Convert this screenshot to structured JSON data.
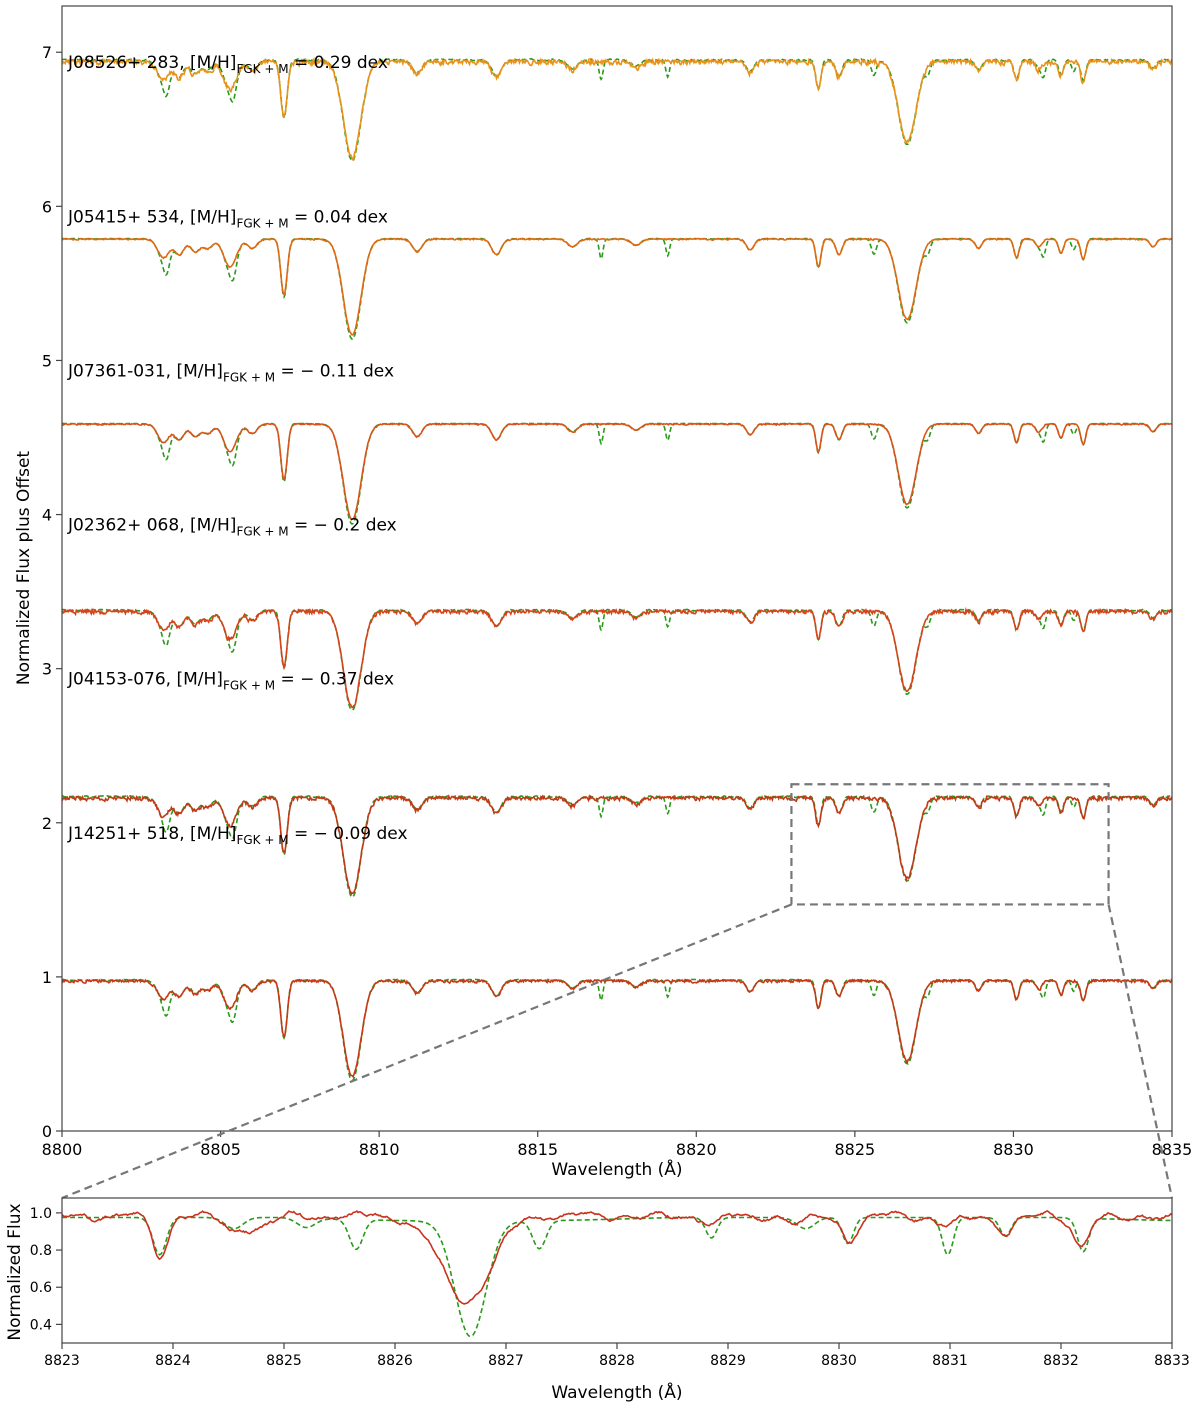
{
  "chart_data": [
    {
      "type": "line",
      "panel": "main",
      "xlabel": "Wavelength (Å)",
      "ylabel": "Normalized Flux plus Offset",
      "xlim": [
        8800,
        8835
      ],
      "ylim": [
        0,
        7.3
      ],
      "xticks": [
        8800,
        8805,
        8810,
        8815,
        8820,
        8825,
        8830,
        8835
      ],
      "yticks": [
        0,
        1,
        2,
        3,
        4,
        5,
        6,
        7
      ],
      "continuum_lines": [
        {
          "x": 8803.2,
          "d": 0.12,
          "w": 0.18
        },
        {
          "x": 8803.7,
          "d": 0.1,
          "w": 0.15
        },
        {
          "x": 8804.2,
          "d": 0.08,
          "w": 0.15
        },
        {
          "x": 8804.6,
          "d": 0.06,
          "w": 0.15
        },
        {
          "x": 8805.3,
          "d": 0.18,
          "w": 0.2
        },
        {
          "x": 8806.0,
          "d": 0.06,
          "w": 0.15
        },
        {
          "x": 8807.0,
          "d": 0.36,
          "w": 0.1
        },
        {
          "x": 8809.15,
          "d": 0.62,
          "w": 0.28
        },
        {
          "x": 8811.2,
          "d": 0.08,
          "w": 0.15
        },
        {
          "x": 8813.7,
          "d": 0.1,
          "w": 0.15
        },
        {
          "x": 8816.1,
          "d": 0.05,
          "w": 0.15
        },
        {
          "x": 8818.1,
          "d": 0.04,
          "w": 0.15
        },
        {
          "x": 8821.7,
          "d": 0.07,
          "w": 0.12
        },
        {
          "x": 8823.85,
          "d": 0.18,
          "w": 0.08
        },
        {
          "x": 8824.5,
          "d": 0.1,
          "w": 0.1
        },
        {
          "x": 8826.65,
          "d": 0.52,
          "w": 0.28
        },
        {
          "x": 8828.9,
          "d": 0.06,
          "w": 0.1
        },
        {
          "x": 8830.1,
          "d": 0.12,
          "w": 0.08
        },
        {
          "x": 8830.8,
          "d": 0.05,
          "w": 0.1
        },
        {
          "x": 8831.5,
          "d": 0.09,
          "w": 0.08
        },
        {
          "x": 8832.2,
          "d": 0.13,
          "w": 0.08
        },
        {
          "x": 8834.4,
          "d": 0.05,
          "w": 0.1
        }
      ],
      "model_extra_lines": [
        {
          "x": 8803.3,
          "d": 0.12,
          "w": 0.1
        },
        {
          "x": 8805.4,
          "d": 0.1,
          "w": 0.1
        },
        {
          "x": 8817.0,
          "d": 0.13,
          "w": 0.06
        },
        {
          "x": 8819.1,
          "d": 0.11,
          "w": 0.06
        },
        {
          "x": 8825.6,
          "d": 0.1,
          "w": 0.08
        },
        {
          "x": 8827.3,
          "d": 0.07,
          "w": 0.08
        },
        {
          "x": 8830.95,
          "d": 0.1,
          "w": 0.07
        },
        {
          "x": 8831.9,
          "d": 0.07,
          "w": 0.07
        }
      ],
      "series": [
        {
          "name": "J08526+283",
          "metallicity_dex": 0.29,
          "offset": 6.0,
          "continuum": 0.95,
          "depth_scale": 1.0,
          "noise": 0.022,
          "observed_color": "#e8921a",
          "model_color": "#2a9a1a",
          "label_prefix": "J08526+ 283, [M/H]",
          "label_sub": "FGK + M",
          "label_value": "=  0.29 dex"
        },
        {
          "name": "J05415+534",
          "metallicity_dex": 0.04,
          "offset": 5.0,
          "continuum": 0.79,
          "depth_scale": 1.0,
          "noise": 0.006,
          "observed_color": "#e06a14",
          "model_color": "#2a9a1a",
          "label_prefix": "J05415+ 534, [M/H]",
          "label_sub": "FGK + M",
          "label_value": "=  0.04 dex"
        },
        {
          "name": "J07361-031",
          "metallicity_dex": -0.11,
          "offset": 4.0,
          "continuum": 0.59,
          "depth_scale": 1.0,
          "noise": 0.006,
          "observed_color": "#d9541a",
          "model_color": "#2a9a1a",
          "label_prefix": "J07361-031, [M/H]",
          "label_sub": "FGK + M",
          "label_value": "=  − 0.11 dex"
        },
        {
          "name": "J02362+068",
          "metallicity_dex": -0.2,
          "offset": 3.0,
          "continuum": 0.38,
          "depth_scale": 1.0,
          "noise": 0.018,
          "observed_color": "#d4441a",
          "model_color": "#2a9a1a",
          "label_prefix": "J02362+ 068, [M/H]",
          "label_sub": "FGK + M",
          "label_value": "=  − 0.2 dex"
        },
        {
          "name": "J04153-076",
          "metallicity_dex": -0.37,
          "offset": 2.0,
          "continuum": 0.17,
          "depth_scale": 1.0,
          "noise": 0.018,
          "observed_color": "#c03a18",
          "model_color": "#2a9a1a",
          "label_prefix": "J04153-076, [M/H]",
          "label_sub": "FGK + M",
          "label_value": "=  − 0.37 dex"
        },
        {
          "name": "J14251+518",
          "metallicity_dex": -0.09,
          "offset": 1.0,
          "continuum": -0.02,
          "depth_scale": 1.0,
          "noise": 0.012,
          "observed_color": "#c53a15",
          "model_color": "#2a9a1a",
          "label_prefix": "J14251+ 518, [M/H]",
          "label_sub": "FGK + M",
          "label_value": "=  − 0.09 dex"
        }
      ],
      "zoom_region": {
        "xlim": [
          8823,
          8833
        ],
        "ylim": [
          1.47,
          2.25
        ],
        "series": "J04153-076"
      }
    },
    {
      "type": "line",
      "panel": "zoom",
      "xlabel": "Wavelength (Å)",
      "ylabel": "Normalized Flux",
      "xlim": [
        8823,
        8833
      ],
      "ylim": [
        0.3,
        1.08
      ],
      "xticks": [
        8823,
        8824,
        8825,
        8826,
        8827,
        8828,
        8829,
        8830,
        8831,
        8832,
        8833
      ],
      "yticks": [
        0.4,
        0.6,
        0.8,
        1.0
      ],
      "ytick_labels": [
        "0.4",
        "0.6",
        "0.8",
        "1.0"
      ],
      "observed_lines": [
        {
          "x": 8823.88,
          "d": 0.21,
          "w": 0.07
        },
        {
          "x": 8824.55,
          "d": 0.07,
          "w": 0.1
        },
        {
          "x": 8824.8,
          "d": 0.06,
          "w": 0.1
        },
        {
          "x": 8826.65,
          "d": 0.46,
          "w": 0.22
        },
        {
          "x": 8828.85,
          "d": 0.04,
          "w": 0.06
        },
        {
          "x": 8829.65,
          "d": 0.04,
          "w": 0.08
        },
        {
          "x": 8830.1,
          "d": 0.12,
          "w": 0.07
        },
        {
          "x": 8830.95,
          "d": 0.04,
          "w": 0.1
        },
        {
          "x": 8831.5,
          "d": 0.09,
          "w": 0.07
        },
        {
          "x": 8832.18,
          "d": 0.15,
          "w": 0.07
        }
      ],
      "model_lines": [
        {
          "x": 8823.88,
          "d": 0.2,
          "w": 0.06
        },
        {
          "x": 8824.55,
          "d": 0.06,
          "w": 0.08
        },
        {
          "x": 8825.2,
          "d": 0.05,
          "w": 0.08
        },
        {
          "x": 8825.65,
          "d": 0.16,
          "w": 0.06
        },
        {
          "x": 8826.68,
          "d": 0.62,
          "w": 0.14
        },
        {
          "x": 8827.3,
          "d": 0.15,
          "w": 0.06
        },
        {
          "x": 8828.85,
          "d": 0.11,
          "w": 0.05
        },
        {
          "x": 8829.7,
          "d": 0.06,
          "w": 0.08
        },
        {
          "x": 8830.08,
          "d": 0.14,
          "w": 0.05
        },
        {
          "x": 8830.98,
          "d": 0.2,
          "w": 0.05
        },
        {
          "x": 8831.5,
          "d": 0.1,
          "w": 0.05
        },
        {
          "x": 8832.2,
          "d": 0.18,
          "w": 0.05
        }
      ]
    }
  ]
}
